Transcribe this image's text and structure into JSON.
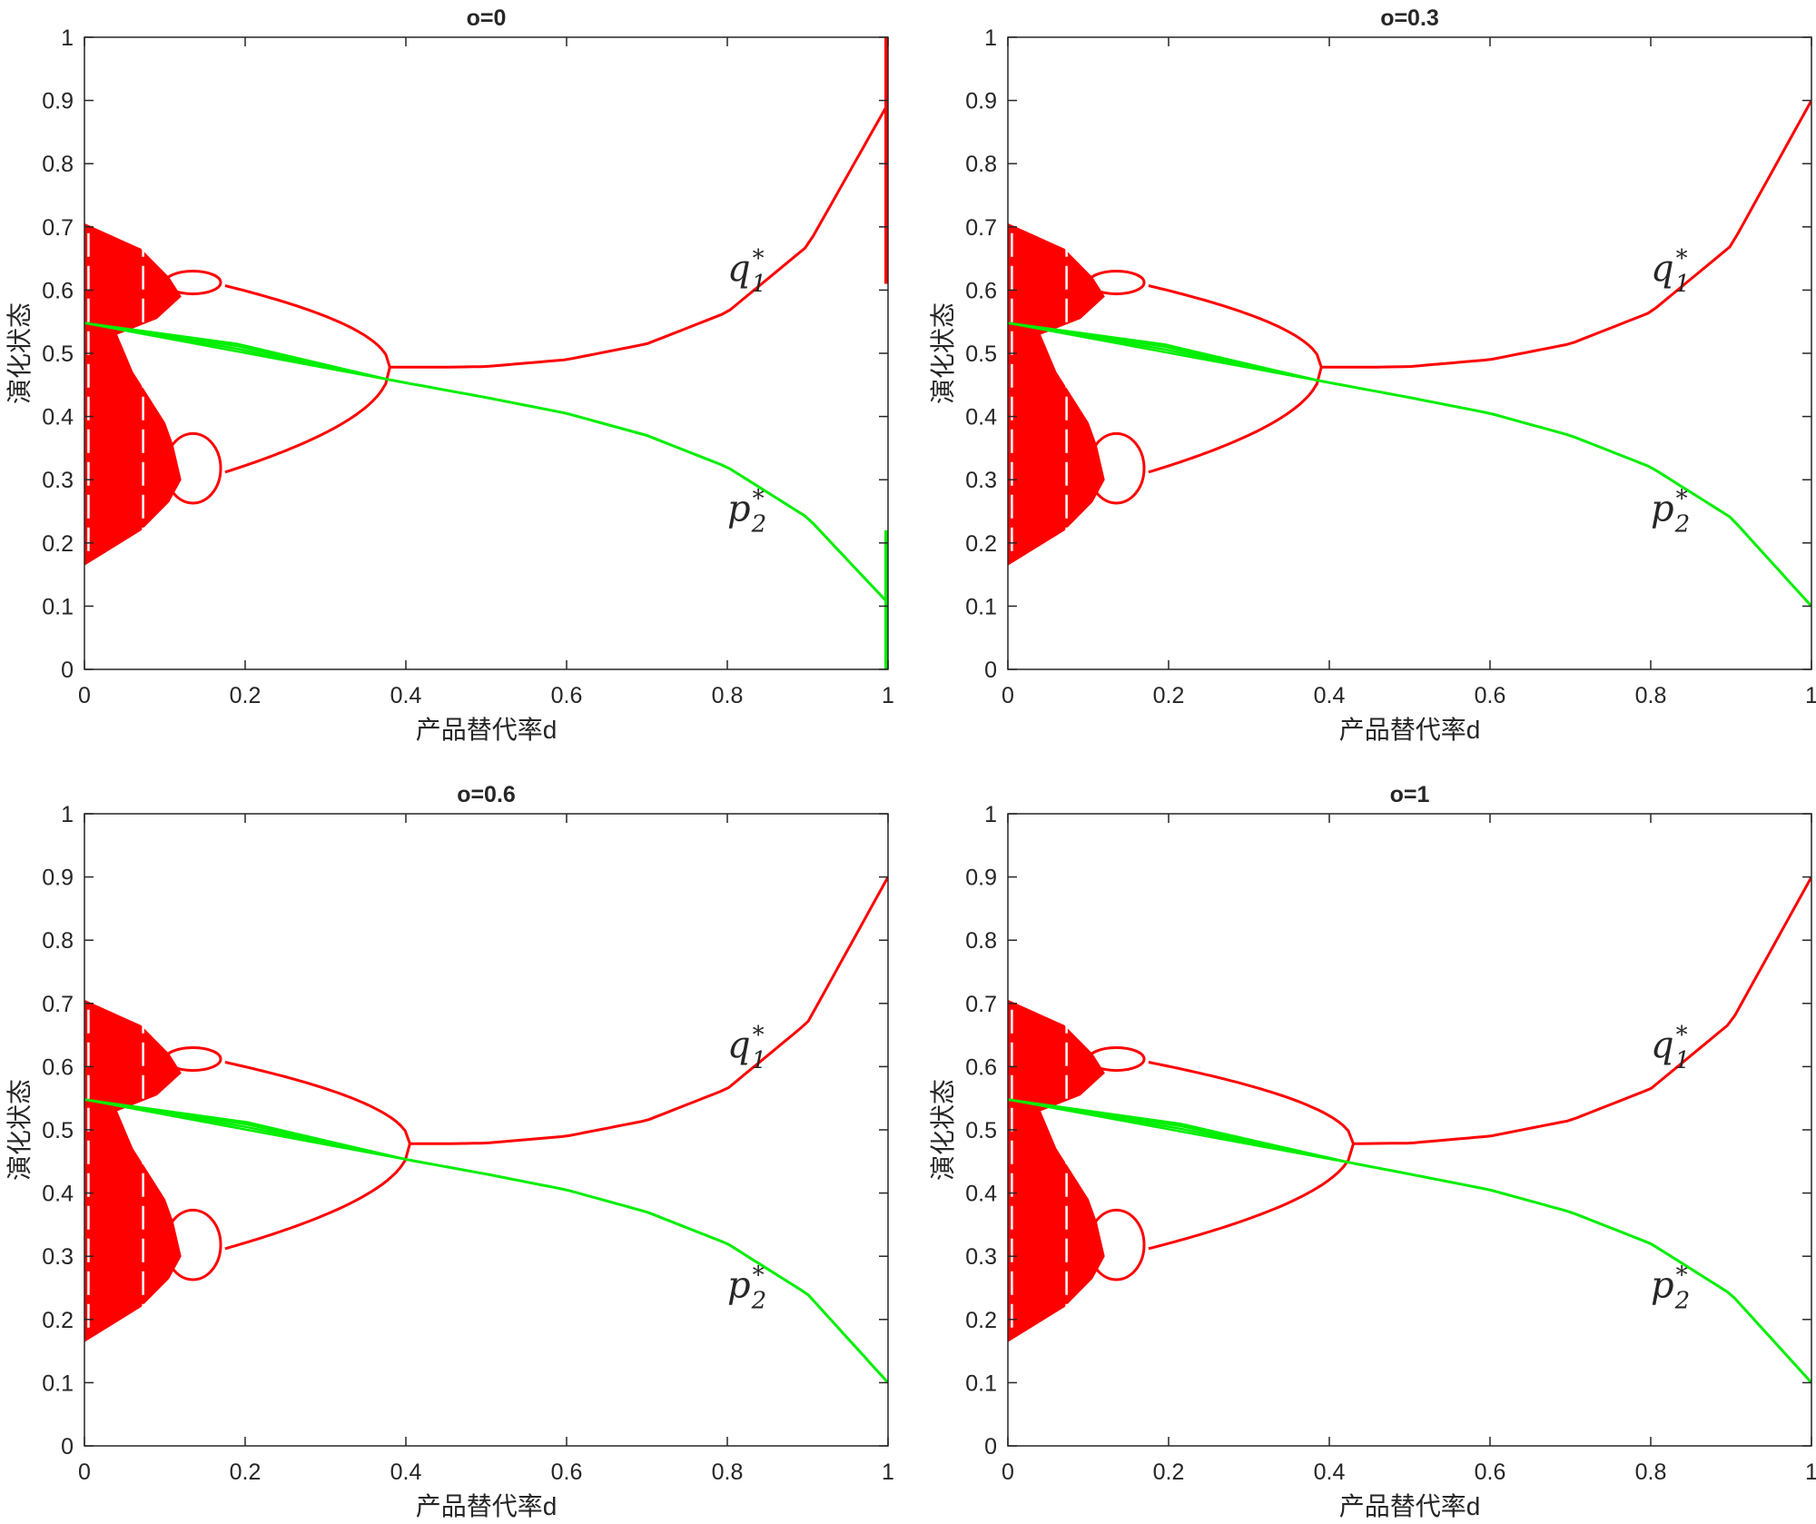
{
  "chart_data": [
    {
      "type": "line",
      "title": "o=0",
      "xlabel": "产品替代率d",
      "ylabel": "演化状态",
      "xlim": [
        0,
        1
      ],
      "ylim": [
        0,
        1
      ],
      "xticks": [
        "0",
        "0.2",
        "0.4",
        "0.6",
        "0.8",
        "1"
      ],
      "yticks": [
        "0",
        "0.1",
        "0.2",
        "0.3",
        "0.4",
        "0.5",
        "0.6",
        "0.7",
        "0.8",
        "0.9",
        "1"
      ],
      "o": 0,
      "merge_d": 0.38,
      "series": [
        {
          "name": "q1*",
          "label_base": "q",
          "label_sub": "1",
          "label_sup": "*",
          "color": "#ff0000",
          "x": [
            0.38,
            0.45,
            0.5,
            0.6,
            0.7,
            0.8,
            0.9,
            1.0
          ],
          "y": [
            0.478,
            0.478,
            0.479,
            0.49,
            0.515,
            0.565,
            0.67,
            0.895
          ]
        },
        {
          "name": "p2*",
          "label_base": "p",
          "label_sub": "2",
          "label_sup": "*",
          "color": "#00ee00",
          "x": [
            0.38,
            0.5,
            0.6,
            0.7,
            0.8,
            0.9,
            1.0
          ],
          "y": [
            0.458,
            0.43,
            0.405,
            0.37,
            0.32,
            0.24,
            0.105
          ]
        }
      ],
      "label_positions_data": [
        {
          "x": 0.8,
          "y": 0.615
        },
        {
          "x": 0.8,
          "y": 0.235
        }
      ],
      "edge_spike": {
        "x": 1.0,
        "red": [
          0.61,
          1.0
        ],
        "green": [
          0.0,
          0.22
        ]
      }
    },
    {
      "type": "line",
      "title": "o=0.3",
      "xlabel": "产品替代率d",
      "ylabel": "演化状态",
      "xlim": [
        0,
        1
      ],
      "ylim": [
        0,
        1
      ],
      "xticks": [
        "0",
        "0.2",
        "0.4",
        "0.6",
        "0.8",
        "1"
      ],
      "yticks": [
        "0",
        "0.1",
        "0.2",
        "0.3",
        "0.4",
        "0.5",
        "0.6",
        "0.7",
        "0.8",
        "0.9",
        "1"
      ],
      "o": 0.3,
      "merge_d": 0.39,
      "series": [
        {
          "name": "q1*",
          "label_base": "q",
          "label_sub": "1",
          "label_sup": "*",
          "color": "#ff0000",
          "x": [
            0.39,
            0.45,
            0.5,
            0.6,
            0.7,
            0.8,
            0.9,
            1.0
          ],
          "y": [
            0.478,
            0.478,
            0.479,
            0.49,
            0.515,
            0.565,
            0.67,
            0.9
          ]
        },
        {
          "name": "p2*",
          "label_base": "p",
          "label_sub": "2",
          "label_sup": "*",
          "color": "#00ee00",
          "x": [
            0.39,
            0.5,
            0.6,
            0.7,
            0.8,
            0.9,
            1.0
          ],
          "y": [
            0.456,
            0.43,
            0.405,
            0.37,
            0.32,
            0.24,
            0.1
          ]
        }
      ],
      "label_positions_data": [
        {
          "x": 0.8,
          "y": 0.615
        },
        {
          "x": 0.8,
          "y": 0.235
        }
      ]
    },
    {
      "type": "line",
      "title": "o=0.6",
      "xlabel": "产品替代率d",
      "ylabel": "演化状态",
      "xlim": [
        0,
        1
      ],
      "ylim": [
        0,
        1
      ],
      "xticks": [
        "0",
        "0.2",
        "0.4",
        "0.6",
        "0.8",
        "1"
      ],
      "yticks": [
        "0",
        "0.1",
        "0.2",
        "0.3",
        "0.4",
        "0.5",
        "0.6",
        "0.7",
        "0.8",
        "0.9",
        "1"
      ],
      "o": 0.6,
      "merge_d": 0.405,
      "series": [
        {
          "name": "q1*",
          "label_base": "q",
          "label_sub": "1",
          "label_sup": "*",
          "color": "#ff0000",
          "x": [
            0.405,
            0.45,
            0.5,
            0.6,
            0.7,
            0.8,
            0.9,
            1.0
          ],
          "y": [
            0.478,
            0.478,
            0.479,
            0.49,
            0.515,
            0.565,
            0.67,
            0.9
          ]
        },
        {
          "name": "p2*",
          "label_base": "p",
          "label_sub": "2",
          "label_sup": "*",
          "color": "#00ee00",
          "x": [
            0.405,
            0.5,
            0.6,
            0.7,
            0.8,
            0.9,
            1.0
          ],
          "y": [
            0.452,
            0.43,
            0.405,
            0.37,
            0.32,
            0.24,
            0.1
          ]
        }
      ],
      "label_positions_data": [
        {
          "x": 0.8,
          "y": 0.615
        },
        {
          "x": 0.8,
          "y": 0.235
        }
      ]
    },
    {
      "type": "line",
      "title": "o=1",
      "xlabel": "产品替代率d",
      "ylabel": "演化状态",
      "xlim": [
        0,
        1
      ],
      "ylim": [
        0,
        1
      ],
      "xticks": [
        "0",
        "0.2",
        "0.4",
        "0.6",
        "0.8",
        "1"
      ],
      "yticks": [
        "0",
        "0.1",
        "0.2",
        "0.3",
        "0.4",
        "0.5",
        "0.6",
        "0.7",
        "0.8",
        "0.9",
        "1"
      ],
      "o": 1,
      "merge_d": 0.43,
      "series": [
        {
          "name": "q1*",
          "label_base": "q",
          "label_sub": "1",
          "label_sup": "*",
          "color": "#ff0000",
          "x": [
            0.43,
            0.5,
            0.6,
            0.7,
            0.8,
            0.9,
            1.0
          ],
          "y": [
            0.478,
            0.479,
            0.49,
            0.515,
            0.565,
            0.67,
            0.9
          ]
        },
        {
          "name": "p2*",
          "label_base": "p",
          "label_sub": "2",
          "label_sup": "*",
          "color": "#00ee00",
          "x": [
            0.43,
            0.5,
            0.6,
            0.7,
            0.8,
            0.9,
            1.0
          ],
          "y": [
            0.447,
            0.43,
            0.405,
            0.37,
            0.32,
            0.24,
            0.1
          ]
        }
      ],
      "label_positions_data": [
        {
          "x": 0.8,
          "y": 0.615
        },
        {
          "x": 0.8,
          "y": 0.235
        }
      ]
    }
  ],
  "bifurcation_shape": {
    "chaotic_band": {
      "d_end": 0.105,
      "upper": [
        0.705,
        0.62
      ],
      "lower": [
        0.165,
        0.265
      ]
    },
    "period2_split_d": 0.175,
    "upper_branch_at_split": 0.607,
    "lower_branch_at_split": 0.312,
    "period1_value": 0.478,
    "green_start": 0.548
  }
}
